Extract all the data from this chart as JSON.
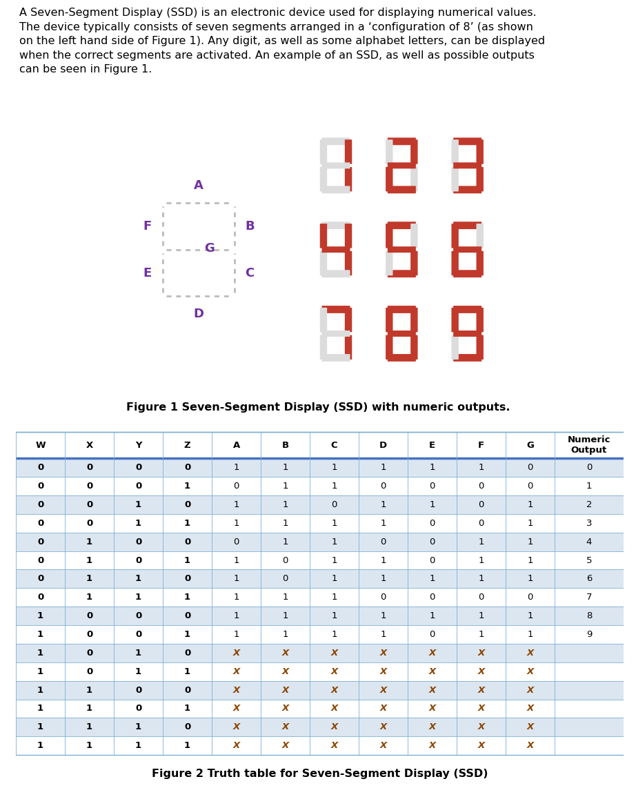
{
  "title_text": "A Seven-Segment Display (SSD) is an electronic device used for displaying numerical values.\nThe device typically consists of seven segments arranged in a ‘configuration of 8’ (as shown\non the left hand side of Figure 1). Any digit, as well as some alphabet letters, can be displayed\nwhen the correct segments are activated. An example of an SSD, as well as possible outputs\ncan be seen in Figure 1.",
  "figure1_caption": "Figure 1 Seven-Segment Display (SSD) with numeric outputs.",
  "figure2_caption": "Figure 2 Truth table for Seven-Segment Display (SSD)",
  "purple_color": "#7030A0",
  "red_color": "#C0392B",
  "inactive_color": "#DCDCDC",
  "table_header": [
    "W",
    "X",
    "Y",
    "Z",
    "A",
    "B",
    "C",
    "D",
    "E",
    "F",
    "G",
    "Numeric\nOutput"
  ],
  "table_data": [
    [
      "0",
      "0",
      "0",
      "0",
      "1",
      "1",
      "1",
      "1",
      "1",
      "1",
      "0",
      "0"
    ],
    [
      "0",
      "0",
      "0",
      "1",
      "0",
      "1",
      "1",
      "0",
      "0",
      "0",
      "0",
      "1"
    ],
    [
      "0",
      "0",
      "1",
      "0",
      "1",
      "1",
      "0",
      "1",
      "1",
      "0",
      "1",
      "2"
    ],
    [
      "0",
      "0",
      "1",
      "1",
      "1",
      "1",
      "1",
      "1",
      "0",
      "0",
      "1",
      "3"
    ],
    [
      "0",
      "1",
      "0",
      "0",
      "0",
      "1",
      "1",
      "0",
      "0",
      "1",
      "1",
      "4"
    ],
    [
      "0",
      "1",
      "0",
      "1",
      "1",
      "0",
      "1",
      "1",
      "0",
      "1",
      "1",
      "5"
    ],
    [
      "0",
      "1",
      "1",
      "0",
      "1",
      "0",
      "1",
      "1",
      "1",
      "1",
      "1",
      "6"
    ],
    [
      "0",
      "1",
      "1",
      "1",
      "1",
      "1",
      "1",
      "0",
      "0",
      "0",
      "0",
      "7"
    ],
    [
      "1",
      "0",
      "0",
      "0",
      "1",
      "1",
      "1",
      "1",
      "1",
      "1",
      "1",
      "8"
    ],
    [
      "1",
      "0",
      "0",
      "1",
      "1",
      "1",
      "1",
      "1",
      "0",
      "1",
      "1",
      "9"
    ],
    [
      "1",
      "0",
      "1",
      "0",
      "X",
      "X",
      "X",
      "X",
      "X",
      "X",
      "X",
      ""
    ],
    [
      "1",
      "0",
      "1",
      "1",
      "X",
      "X",
      "X",
      "X",
      "X",
      "X",
      "X",
      ""
    ],
    [
      "1",
      "1",
      "0",
      "0",
      "X",
      "X",
      "X",
      "X",
      "X",
      "X",
      "X",
      ""
    ],
    [
      "1",
      "1",
      "0",
      "1",
      "X",
      "X",
      "X",
      "X",
      "X",
      "X",
      "X",
      ""
    ],
    [
      "1",
      "1",
      "1",
      "0",
      "X",
      "X",
      "X",
      "X",
      "X",
      "X",
      "X",
      ""
    ],
    [
      "1",
      "1",
      "1",
      "1",
      "X",
      "X",
      "X",
      "X",
      "X",
      "X",
      "X",
      ""
    ]
  ],
  "digits_segs": {
    "1": [
      0,
      1,
      1,
      0,
      0,
      0,
      0
    ],
    "2": [
      1,
      1,
      0,
      1,
      1,
      0,
      1
    ],
    "3": [
      1,
      1,
      1,
      1,
      0,
      0,
      1
    ],
    "4": [
      0,
      1,
      1,
      0,
      0,
      1,
      1
    ],
    "5": [
      1,
      0,
      1,
      1,
      0,
      1,
      1
    ],
    "6": [
      1,
      0,
      1,
      1,
      1,
      1,
      1
    ],
    "7": [
      1,
      1,
      1,
      0,
      0,
      0,
      0
    ],
    "8": [
      1,
      1,
      1,
      1,
      1,
      1,
      1
    ],
    "9": [
      1,
      1,
      1,
      1,
      0,
      1,
      1
    ]
  },
  "grid_digits": [
    [
      "1",
      "2",
      "3"
    ],
    [
      "4",
      "5",
      "6"
    ],
    [
      "7",
      "8",
      "9"
    ]
  ],
  "stripe_bg": "#DCE6F1",
  "white_bg": "#FFFFFF",
  "border_color": "#7BAFD4",
  "header_line_color": "#4472C4"
}
